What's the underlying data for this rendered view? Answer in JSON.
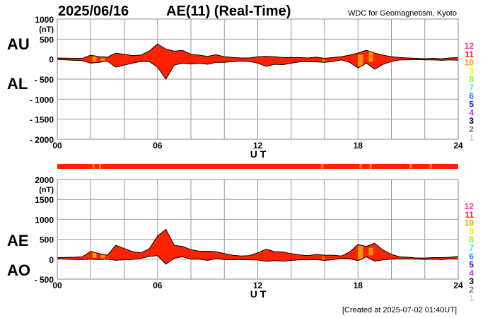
{
  "header": {
    "date": "2025/06/16",
    "title": "AE(11) (Real-Time)",
    "source": "WDC for Geomagnetism, Kyoto",
    "created": "[Created at 2025-07-02 01:40UT]"
  },
  "colors": {
    "main": "#ff2200",
    "partial": "#ff9900",
    "grid": "#999999"
  },
  "legend": {
    "items": [
      {
        "label": "12",
        "color": "#ff3399"
      },
      {
        "label": "11",
        "color": "#ff2200"
      },
      {
        "label": "10",
        "color": "#ff9900"
      },
      {
        "label": "9",
        "color": "#ffee00"
      },
      {
        "label": "8",
        "color": "#99ee22"
      },
      {
        "label": "7",
        "color": "#33eedd"
      },
      {
        "label": "6",
        "color": "#2288ff"
      },
      {
        "label": "5",
        "color": "#3311ee"
      },
      {
        "label": "4",
        "color": "#ee22ee"
      },
      {
        "label": "3",
        "color": "#000000"
      },
      {
        "label": "2",
        "color": "#777777"
      },
      {
        "label": "1",
        "color": "#cccccc"
      }
    ]
  },
  "chart_data": [
    {
      "type": "area",
      "name": "AU/AL",
      "labels": {
        "upper": "AU",
        "lower": "AL"
      },
      "unit": "(nT)",
      "xlabel": "U T",
      "xlim": [
        0,
        24
      ],
      "ylim": [
        -2000,
        1000
      ],
      "yticks": [
        "1000",
        "500",
        "0",
        "- 500",
        "- 1000",
        "- 1500",
        "- 2000"
      ],
      "ytick_values": [
        1000,
        500,
        0,
        -500,
        -1000,
        -1500,
        -2000
      ],
      "xticks": [
        "00",
        "06",
        "12",
        "18",
        "24"
      ],
      "xtick_values": [
        0,
        6,
        12,
        18,
        24
      ],
      "grid": true
    },
    {
      "type": "area",
      "name": "AE/AO",
      "labels": {
        "upper": "AE",
        "lower": "AO"
      },
      "unit": "(nT)",
      "xlabel": "U T",
      "xlim": [
        0,
        24
      ],
      "ylim": [
        -500,
        2000
      ],
      "yticks": [
        "2000",
        "1500",
        "1000",
        "500",
        "0",
        "- 500"
      ],
      "ytick_values": [
        2000,
        1500,
        1000,
        500,
        0,
        -500
      ],
      "xticks": [
        "00",
        "06",
        "12",
        "18",
        "24"
      ],
      "xtick_values": [
        0,
        6,
        12,
        18,
        24
      ],
      "grid": true
    }
  ],
  "series": {
    "hours_step": 0.5,
    "AU": [
      30,
      25,
      20,
      20,
      100,
      60,
      50,
      150,
      120,
      90,
      100,
      200,
      380,
      250,
      200,
      220,
      120,
      100,
      70,
      110,
      60,
      40,
      30,
      30,
      60,
      70,
      60,
      40,
      40,
      40,
      30,
      50,
      20,
      40,
      60,
      100,
      150,
      220,
      150,
      100,
      60,
      40,
      30,
      20,
      10,
      20,
      10,
      30,
      40
    ],
    "AL": [
      -10,
      -20,
      -30,
      -40,
      -100,
      -80,
      -50,
      -200,
      -150,
      -100,
      -60,
      -60,
      -200,
      -500,
      -150,
      -100,
      -120,
      -100,
      -130,
      -80,
      -80,
      -60,
      -50,
      -60,
      -100,
      -180,
      -130,
      -140,
      -100,
      -70,
      -60,
      -70,
      -80,
      -60,
      -20,
      -80,
      -220,
      -100,
      -250,
      -130,
      -60,
      -20,
      -20,
      -10,
      -20,
      -20,
      -30,
      -20,
      -30
    ]
  },
  "partial_intervals": [
    [
      2.1,
      2.35
    ],
    [
      2.6,
      2.85
    ],
    [
      15.85,
      16.0
    ],
    [
      18.0,
      18.3
    ],
    [
      18.65,
      18.9
    ]
  ],
  "status_partial_hours": [
    2.1,
    2.5,
    15.8,
    18.1,
    18.7,
    21.1,
    22.3
  ]
}
